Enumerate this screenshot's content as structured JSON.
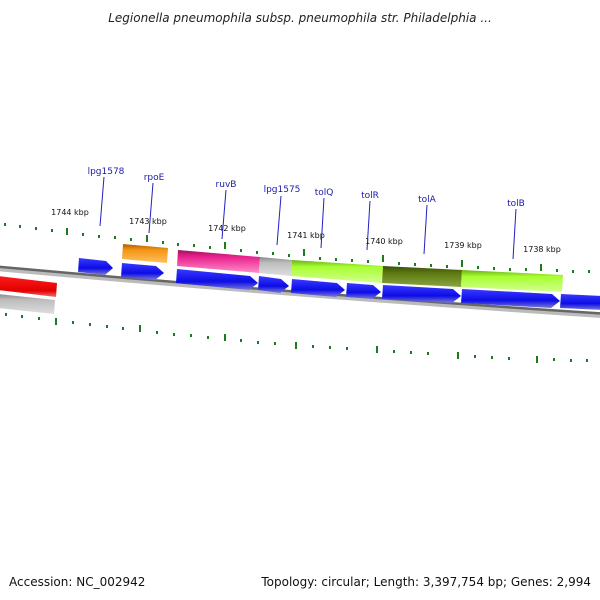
{
  "title": "Legionella pneumophila subsp. pneumophila str. Philadelphia ...",
  "accession": "Accession: NC_002942",
  "topology": "Topology: circular; Length: 3,397,754 bp; Genes: 2,994",
  "colors": {
    "cds_blue": "#1010ee",
    "red": "#ee0000",
    "orange": "#f09010",
    "pink": "#e0208a",
    "grey": "#b8b8b8",
    "lime": "#a6ff2c",
    "olive": "#5e7a10",
    "backbone": "#777777",
    "tick": "#1f7a1f",
    "label": "#1a1aa8"
  },
  "kbp_labels": [
    "1744 kbp",
    "1743 kbp",
    "1742 kbp",
    "1741 kbp",
    "1740 kbp",
    "1739 kbp",
    "1738 kbp"
  ],
  "gene_labels": [
    "lpg1578",
    "rpoE",
    "ruvB",
    "lpg1575",
    "tolQ",
    "tolR",
    "tolA",
    "tolB"
  ]
}
